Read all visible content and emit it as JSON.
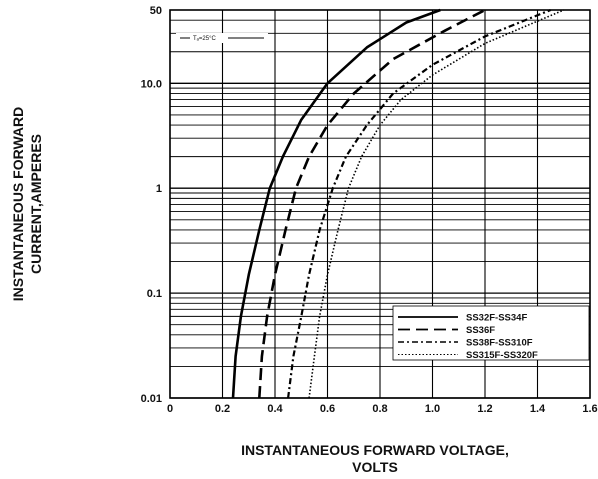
{
  "chart_data": {
    "type": "line",
    "title": "",
    "xlabel": [
      "INSTANTANEOUS FORWARD VOLTAGE,",
      "VOLTS"
    ],
    "ylabel": [
      "INSTANTANEOUS FORWARD",
      "CURRENT,AMPERES"
    ],
    "xlim": [
      0,
      1.6
    ],
    "ylim": [
      0.01,
      50
    ],
    "yscale": "log",
    "grid": true,
    "legend_position": "bottom-right",
    "x_ticks": [
      0,
      0.2,
      0.4,
      0.6,
      0.8,
      1.0,
      1.2,
      1.4,
      1.6
    ],
    "x_tick_labels": [
      "0",
      "0.2",
      "0.4",
      "0.6",
      "0.8",
      "1.0",
      "1.2",
      "1.4",
      "1.6"
    ],
    "y_ticks": [
      0.01,
      0.1,
      1,
      10,
      50
    ],
    "y_tick_labels": [
      "0.01",
      "0.1",
      "1",
      "10.0",
      "50"
    ],
    "annotation": "Tₐ=25°C",
    "series": [
      {
        "name": "SS32F-SS34F",
        "style": "solid",
        "x": [
          0.24,
          0.25,
          0.27,
          0.3,
          0.34,
          0.38,
          0.43,
          0.5,
          0.6,
          0.75,
          0.9,
          1.03
        ],
        "y": [
          0.01,
          0.025,
          0.06,
          0.15,
          0.4,
          1.0,
          2.0,
          4.5,
          10,
          22,
          38,
          50
        ]
      },
      {
        "name": "SS36F",
        "style": "dashed",
        "x": [
          0.34,
          0.35,
          0.37,
          0.4,
          0.44,
          0.48,
          0.53,
          0.6,
          0.7,
          0.85,
          1.05,
          1.2
        ],
        "y": [
          0.01,
          0.025,
          0.06,
          0.15,
          0.4,
          1.0,
          2.0,
          4.0,
          8.0,
          17,
          32,
          50
        ]
      },
      {
        "name": "SS38F-SS310F",
        "style": "dash-dot",
        "x": [
          0.45,
          0.47,
          0.5,
          0.53,
          0.57,
          0.62,
          0.67,
          0.75,
          0.85,
          1.0,
          1.2,
          1.45
        ],
        "y": [
          0.01,
          0.025,
          0.06,
          0.15,
          0.4,
          1.0,
          2.0,
          4.0,
          8.0,
          15,
          28,
          50
        ]
      },
      {
        "name": "SS315F-SS320F",
        "style": "dotted",
        "x": [
          0.53,
          0.55,
          0.57,
          0.6,
          0.64,
          0.68,
          0.73,
          0.8,
          0.88,
          1.0,
          1.2,
          1.5
        ],
        "y": [
          0.01,
          0.025,
          0.06,
          0.15,
          0.4,
          1.0,
          2.0,
          4.0,
          7.0,
          12,
          24,
          50
        ]
      }
    ]
  }
}
